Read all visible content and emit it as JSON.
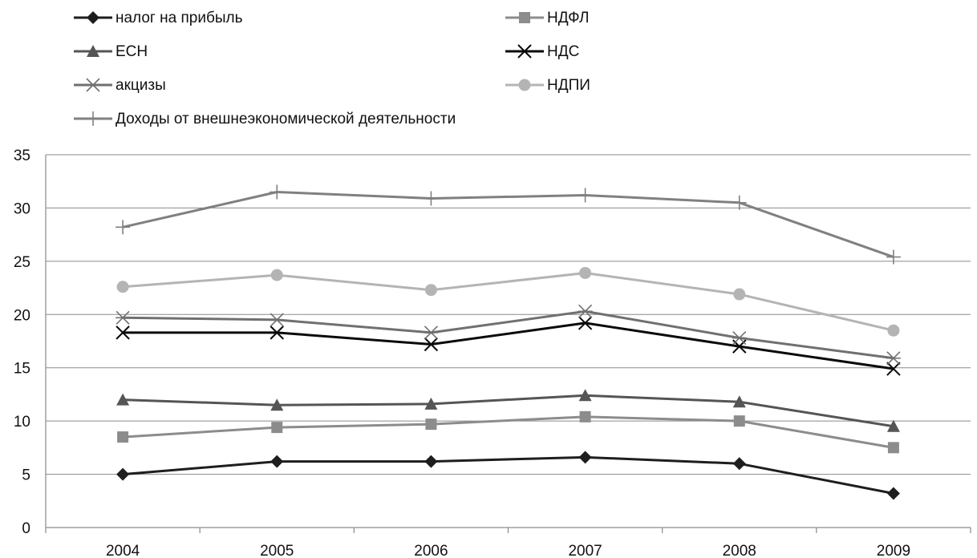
{
  "chart_data": {
    "type": "line",
    "title": "",
    "xlabel": "",
    "ylabel": "",
    "ylim": [
      0,
      35
    ],
    "yticks": [
      0,
      5,
      10,
      15,
      20,
      25,
      30,
      35
    ],
    "grid": true,
    "legend_position": "top",
    "categories": [
      "2004",
      "2005",
      "2006",
      "2007",
      "2008",
      "2009"
    ],
    "series": [
      {
        "name": "налог на прибыль",
        "color": "#1e1e1e",
        "marker": "diamond",
        "values": [
          5.0,
          6.2,
          6.2,
          6.6,
          6.0,
          3.2
        ]
      },
      {
        "name": "НДФЛ",
        "color": "#8c8c8c",
        "marker": "square",
        "values": [
          8.5,
          9.4,
          9.7,
          10.4,
          10.0,
          7.5
        ]
      },
      {
        "name": "ЕСН",
        "color": "#555555",
        "marker": "triangle",
        "values": [
          12.0,
          11.5,
          11.6,
          12.4,
          11.8,
          9.5
        ]
      },
      {
        "name": "НДС",
        "color": "#0a0a0a",
        "marker": "x",
        "values": [
          18.3,
          18.3,
          17.2,
          19.2,
          17.0,
          14.9
        ]
      },
      {
        "name": "акцизы",
        "color": "#707070",
        "marker": "asterisk",
        "values": [
          19.7,
          19.5,
          18.3,
          20.3,
          17.8,
          15.9
        ]
      },
      {
        "name": "НДПИ",
        "color": "#b4b4b4",
        "marker": "circle",
        "values": [
          22.6,
          23.7,
          22.3,
          23.9,
          21.9,
          18.5
        ]
      },
      {
        "name": "Доходы от внешнеэкономической деятельности",
        "color": "#808080",
        "marker": "plus",
        "values": [
          28.2,
          31.5,
          30.9,
          31.2,
          30.5,
          25.4
        ]
      }
    ]
  }
}
